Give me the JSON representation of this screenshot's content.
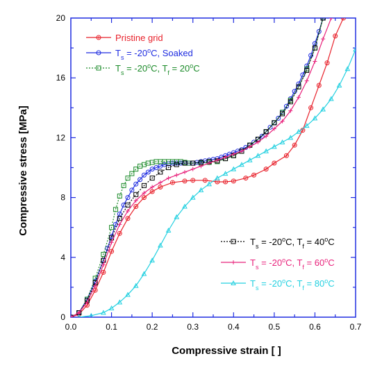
{
  "chart_data": {
    "type": "line",
    "xlabel": "Compressive strain   [  ]",
    "ylabel": "Compressive stress   [MPa]",
    "xlim": [
      0.0,
      0.7
    ],
    "ylim": [
      0,
      20
    ],
    "x_ticks": [
      "0.0",
      "0.1",
      "0.2",
      "0.3",
      "0.4",
      "0.5",
      "0.6",
      "0.7"
    ],
    "y_ticks": [
      "0",
      "4",
      "8",
      "12",
      "16",
      "20"
    ],
    "grid": false,
    "legend_placement": [
      "top-left",
      "bottom-right"
    ],
    "series": [
      {
        "name": "Pristine grid",
        "color": "#e8202a",
        "marker": "diamond-circle",
        "dash": "solid",
        "legend_group": 0,
        "legend_parts": [
          {
            "t": "Pristine grid"
          }
        ],
        "x": [
          0.0,
          0.02,
          0.04,
          0.06,
          0.08,
          0.1,
          0.12,
          0.14,
          0.16,
          0.18,
          0.2,
          0.22,
          0.25,
          0.28,
          0.3,
          0.33,
          0.36,
          0.38,
          0.4,
          0.43,
          0.45,
          0.48,
          0.5,
          0.53,
          0.55,
          0.57,
          0.59,
          0.61,
          0.63,
          0.65,
          0.67
        ],
        "y": [
          0.0,
          0.2,
          0.8,
          1.8,
          3.0,
          4.4,
          5.6,
          6.6,
          7.4,
          8.0,
          8.4,
          8.7,
          9.0,
          9.1,
          9.15,
          9.15,
          9.05,
          9.05,
          9.1,
          9.3,
          9.5,
          9.9,
          10.3,
          10.8,
          11.5,
          12.5,
          14.0,
          15.5,
          17.0,
          18.8,
          20.0
        ]
      },
      {
        "name": "Ts = -20oC, Soaked",
        "color": "#1d2be0",
        "marker": "circle",
        "dash": "solid",
        "legend_group": 0,
        "legend_parts": [
          {
            "t": "T"
          },
          {
            "t": "s",
            "sub": true
          },
          {
            "t": " = -20"
          },
          {
            "t": "o",
            "sup": true
          },
          {
            "t": "C, Soaked"
          }
        ],
        "x": [
          0.0,
          0.02,
          0.04,
          0.06,
          0.08,
          0.09,
          0.1,
          0.11,
          0.12,
          0.13,
          0.14,
          0.15,
          0.16,
          0.17,
          0.18,
          0.19,
          0.2,
          0.21,
          0.22,
          0.23,
          0.24,
          0.25,
          0.26,
          0.27,
          0.28,
          0.29,
          0.3,
          0.31,
          0.32,
          0.33,
          0.34,
          0.35,
          0.36,
          0.37,
          0.38,
          0.39,
          0.4,
          0.41,
          0.42,
          0.43,
          0.44,
          0.45,
          0.46,
          0.47,
          0.48,
          0.49,
          0.5,
          0.51,
          0.52,
          0.53,
          0.54,
          0.55,
          0.56,
          0.57,
          0.58,
          0.59,
          0.6,
          0.61,
          0.62
        ],
        "y": [
          0.0,
          0.3,
          1.2,
          2.4,
          3.8,
          4.6,
          5.4,
          6.2,
          6.9,
          7.5,
          8.0,
          8.5,
          8.9,
          9.2,
          9.5,
          9.7,
          9.9,
          10.0,
          10.1,
          10.2,
          10.25,
          10.3,
          10.3,
          10.3,
          10.3,
          10.3,
          10.3,
          10.35,
          10.4,
          10.45,
          10.5,
          10.55,
          10.6,
          10.7,
          10.8,
          10.9,
          11.0,
          11.1,
          11.2,
          11.35,
          11.5,
          11.7,
          11.9,
          12.1,
          12.4,
          12.7,
          13.0,
          13.3,
          13.7,
          14.1,
          14.6,
          15.1,
          15.6,
          16.2,
          16.8,
          17.5,
          18.3,
          19.1,
          20.0
        ]
      },
      {
        "name": "Ts = -20oC, Tf = 20oC",
        "color": "#1a8a28",
        "marker": "square",
        "dash": "dotted",
        "legend_group": 0,
        "legend_parts": [
          {
            "t": "T"
          },
          {
            "t": "s",
            "sub": true
          },
          {
            "t": " = -20"
          },
          {
            "t": "o",
            "sup": true
          },
          {
            "t": "C, T"
          },
          {
            "t": "f",
            "sub": true
          },
          {
            "t": " = 20"
          },
          {
            "t": "o",
            "sup": true
          },
          {
            "t": "C"
          }
        ],
        "x": [
          0.0,
          0.02,
          0.04,
          0.06,
          0.08,
          0.1,
          0.11,
          0.12,
          0.13,
          0.14,
          0.15,
          0.16,
          0.17,
          0.18,
          0.19,
          0.2,
          0.21,
          0.22,
          0.23,
          0.24,
          0.25,
          0.26,
          0.27,
          0.28,
          0.29,
          0.3,
          0.32,
          0.34,
          0.36,
          0.38,
          0.4,
          0.42,
          0.44,
          0.46,
          0.48,
          0.5,
          0.52,
          0.54,
          0.56,
          0.58,
          0.6,
          0.62
        ],
        "y": [
          0.0,
          0.3,
          1.2,
          2.6,
          4.2,
          6.0,
          7.2,
          8.1,
          8.8,
          9.3,
          9.6,
          9.9,
          10.1,
          10.2,
          10.3,
          10.35,
          10.4,
          10.4,
          10.4,
          10.4,
          10.4,
          10.4,
          10.4,
          10.35,
          10.3,
          10.3,
          10.3,
          10.35,
          10.4,
          10.6,
          10.8,
          11.1,
          11.5,
          11.9,
          12.4,
          13.0,
          13.7,
          14.5,
          15.4,
          16.6,
          18.0,
          20.0
        ]
      },
      {
        "name": "Ts = -20oC, Tf = 40oC",
        "color": "#000000",
        "marker": "square",
        "dash": "dotted",
        "legend_group": 1,
        "legend_parts": [
          {
            "t": "T"
          },
          {
            "t": "s",
            "sub": true
          },
          {
            "t": " = -20"
          },
          {
            "t": "o",
            "sup": true
          },
          {
            "t": "C, T"
          },
          {
            "t": "f",
            "sub": true
          },
          {
            "t": " = 40"
          },
          {
            "t": "o",
            "sup": true
          },
          {
            "t": "C"
          }
        ],
        "x": [
          0.0,
          0.02,
          0.04,
          0.06,
          0.08,
          0.1,
          0.12,
          0.14,
          0.16,
          0.18,
          0.2,
          0.22,
          0.24,
          0.26,
          0.28,
          0.3,
          0.32,
          0.34,
          0.36,
          0.38,
          0.4,
          0.42,
          0.44,
          0.46,
          0.48,
          0.5,
          0.52,
          0.54,
          0.56,
          0.58,
          0.6,
          0.62
        ],
        "y": [
          0.0,
          0.3,
          1.1,
          2.3,
          3.8,
          5.3,
          6.6,
          7.5,
          8.2,
          8.8,
          9.3,
          9.7,
          10.0,
          10.2,
          10.3,
          10.3,
          10.35,
          10.4,
          10.45,
          10.6,
          10.8,
          11.1,
          11.5,
          11.9,
          12.4,
          13.0,
          13.6,
          14.4,
          15.4,
          16.5,
          18.0,
          20.0
        ]
      },
      {
        "name": "Ts = -20oC, Tf = 60oC",
        "color": "#e8207a",
        "marker": "plus",
        "dash": "solid",
        "legend_group": 1,
        "legend_parts": [
          {
            "t": "T"
          },
          {
            "t": "s",
            "sub": true
          },
          {
            "t": " = -20"
          },
          {
            "t": "o",
            "sup": true
          },
          {
            "t": "C, T"
          },
          {
            "t": "f",
            "sub": true
          },
          {
            "t": " = 60"
          },
          {
            "t": "o",
            "sup": true
          },
          {
            "t": "C"
          }
        ],
        "x": [
          0.0,
          0.02,
          0.04,
          0.06,
          0.08,
          0.1,
          0.12,
          0.14,
          0.16,
          0.18,
          0.2,
          0.22,
          0.24,
          0.26,
          0.28,
          0.3,
          0.32,
          0.34,
          0.36,
          0.38,
          0.4,
          0.42,
          0.44,
          0.46,
          0.48,
          0.5,
          0.52,
          0.54,
          0.56,
          0.58,
          0.6,
          0.62,
          0.64
        ],
        "y": [
          0.0,
          0.3,
          1.0,
          2.1,
          3.5,
          5.0,
          6.2,
          7.1,
          7.8,
          8.3,
          8.7,
          9.0,
          9.3,
          9.5,
          9.7,
          9.9,
          10.1,
          10.3,
          10.5,
          10.7,
          10.9,
          11.1,
          11.4,
          11.7,
          12.1,
          12.6,
          13.1,
          13.8,
          14.7,
          15.8,
          17.1,
          18.6,
          20.0
        ]
      },
      {
        "name": "Ts = -20oC, Tf = 80oC",
        "color": "#22d0e0",
        "marker": "triangle",
        "dash": "solid",
        "legend_group": 1,
        "legend_parts": [
          {
            "t": "T"
          },
          {
            "t": "s",
            "sub": true
          },
          {
            "t": " = -20"
          },
          {
            "t": "o",
            "sup": true
          },
          {
            "t": "C, T"
          },
          {
            "t": "f",
            "sub": true
          },
          {
            "t": " = 80"
          },
          {
            "t": "o",
            "sup": true
          },
          {
            "t": "C"
          }
        ],
        "x": [
          0.02,
          0.05,
          0.08,
          0.1,
          0.12,
          0.14,
          0.16,
          0.18,
          0.2,
          0.22,
          0.24,
          0.26,
          0.28,
          0.3,
          0.32,
          0.34,
          0.36,
          0.38,
          0.4,
          0.42,
          0.44,
          0.46,
          0.48,
          0.5,
          0.52,
          0.54,
          0.56,
          0.58,
          0.6,
          0.62,
          0.64,
          0.66,
          0.68,
          0.7
        ],
        "y": [
          0.0,
          0.1,
          0.3,
          0.6,
          1.0,
          1.5,
          2.1,
          2.9,
          3.8,
          4.8,
          5.8,
          6.7,
          7.4,
          8.0,
          8.5,
          8.9,
          9.3,
          9.6,
          9.9,
          10.2,
          10.5,
          10.8,
          11.1,
          11.4,
          11.7,
          12.0,
          12.4,
          12.8,
          13.3,
          13.9,
          14.6,
          15.5,
          16.6,
          17.9
        ]
      }
    ]
  }
}
